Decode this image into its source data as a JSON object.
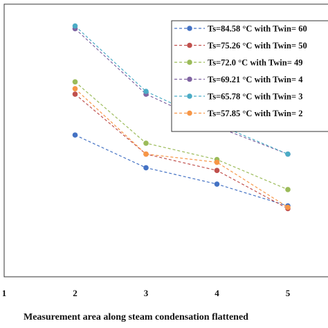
{
  "chart_data": {
    "type": "line",
    "xlabel": "Measurement area along steam condensation flattened",
    "x_ticks": [
      "1",
      "2",
      "3",
      "4",
      "5"
    ],
    "x": [
      2,
      3,
      4,
      5
    ],
    "xlim": [
      1,
      5.35
    ],
    "ylim": [
      0,
      100
    ],
    "grid": false,
    "legend_position": "top-right",
    "series": [
      {
        "name": "Ts=84.58 °C with Twin= 60",
        "color": "#4472c4",
        "values": [
          52,
          40,
          34,
          26
        ]
      },
      {
        "name": "Ts=75.26 °C with Twin= 50",
        "color": "#c0504d",
        "values": [
          67,
          45,
          39,
          25
        ]
      },
      {
        "name": "Ts=72.0 °C with Twin= 49",
        "color": "#9bbb59",
        "values": [
          71.5,
          49,
          43,
          32
        ]
      },
      {
        "name": "Ts=69.21 °C with Twin= 4",
        "color": "#8064a2",
        "values": [
          91,
          67,
          55,
          45
        ]
      },
      {
        "name": "Ts=65.78  °C with Twin= 3",
        "color": "#4bacc6",
        "values": [
          92,
          68,
          56,
          45
        ]
      },
      {
        "name": "Ts=57.85 °C with Twin= 2",
        "color": "#f79646",
        "values": [
          69,
          45,
          42,
          25.5
        ]
      }
    ]
  }
}
